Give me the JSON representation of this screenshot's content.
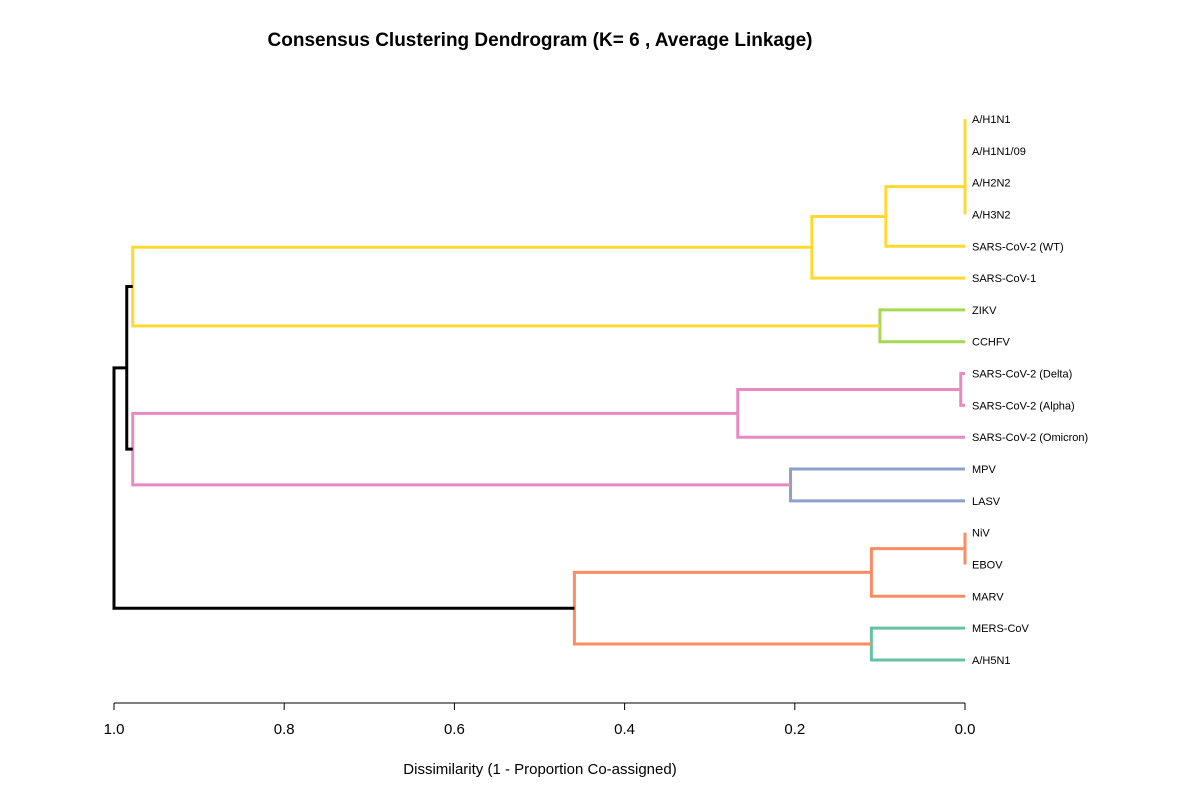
{
  "chart_data": {
    "type": "dendrogram",
    "title": "Consensus Clustering Dendrogram (K= 6 , Average Linkage)",
    "xlabel": "Dissimilarity (1 - Proportion Co-assigned)",
    "xlim": [
      1.0,
      0.0
    ],
    "ticks": [
      "1.0",
      "0.8",
      "0.6",
      "0.4",
      "0.2",
      "0.0"
    ],
    "tick_values": [
      1.0,
      0.8,
      0.6,
      0.4,
      0.2,
      0.0
    ],
    "k": 6,
    "linkage": "average",
    "leaves": [
      {
        "name": "A/H1N1",
        "cluster": 1
      },
      {
        "name": "A/H1N1/09",
        "cluster": 1
      },
      {
        "name": "A/H2N2",
        "cluster": 1
      },
      {
        "name": "A/H3N2",
        "cluster": 1
      },
      {
        "name": "SARS-CoV-2 (WT)",
        "cluster": 1
      },
      {
        "name": "SARS-CoV-1",
        "cluster": 1
      },
      {
        "name": "ZIKV",
        "cluster": 2
      },
      {
        "name": "CCHFV",
        "cluster": 2
      },
      {
        "name": "SARS-CoV-2 (Delta)",
        "cluster": 3
      },
      {
        "name": "SARS-CoV-2 (Alpha)",
        "cluster": 3
      },
      {
        "name": "SARS-CoV-2 (Omicron)",
        "cluster": 3
      },
      {
        "name": "MPV",
        "cluster": 4
      },
      {
        "name": "LASV",
        "cluster": 4
      },
      {
        "name": "NiV",
        "cluster": 5
      },
      {
        "name": "EBOV",
        "cluster": 5
      },
      {
        "name": "MARV",
        "cluster": 5
      },
      {
        "name": "MERS-CoV",
        "cluster": 6
      },
      {
        "name": "A/H5N1",
        "cluster": 6
      }
    ],
    "cluster_colors": {
      "1": "#FFD92F",
      "2": "#A6D854",
      "3": "#E78AC3",
      "4": "#8DA0CB",
      "5": "#FC8D62",
      "6": "#66C2A5",
      "root": "#000000"
    },
    "merges": [
      {
        "id": "m1",
        "left": "A/H1N1",
        "right": "A/H1N1/09",
        "height": 0.0,
        "color": "1"
      },
      {
        "id": "m2",
        "left": "m1",
        "right": "A/H2N2",
        "height": 0.0,
        "color": "1"
      },
      {
        "id": "m3",
        "left": "m2",
        "right": "A/H3N2",
        "height": 0.0,
        "color": "1"
      },
      {
        "id": "m4",
        "left": "m3",
        "right": "SARS-CoV-2 (WT)",
        "height": 0.093,
        "color": "1"
      },
      {
        "id": "m5",
        "left": "m4",
        "right": "SARS-CoV-1",
        "height": 0.18,
        "color": "1"
      },
      {
        "id": "m6",
        "left": "ZIKV",
        "right": "CCHFV",
        "height": 0.1,
        "color": "2"
      },
      {
        "id": "m7",
        "left": "m5",
        "right": "m6",
        "height": 0.978,
        "color": "1"
      },
      {
        "id": "m8",
        "left": "SARS-CoV-2 (Delta)",
        "right": "SARS-CoV-2 (Alpha)",
        "height": 0.005,
        "color": "3"
      },
      {
        "id": "m9",
        "left": "m8",
        "right": "SARS-CoV-2 (Omicron)",
        "height": 0.267,
        "color": "3"
      },
      {
        "id": "m10",
        "left": "MPV",
        "right": "LASV",
        "height": 0.205,
        "color": "4"
      },
      {
        "id": "m11",
        "left": "m9",
        "right": "m10",
        "height": 0.978,
        "color": "3"
      },
      {
        "id": "m12",
        "left": "m7",
        "right": "m11",
        "height": 0.985,
        "color": "root"
      },
      {
        "id": "m13",
        "left": "NiV",
        "right": "EBOV",
        "height": 0.0,
        "color": "5"
      },
      {
        "id": "m14",
        "left": "m13",
        "right": "MARV",
        "height": 0.11,
        "color": "5"
      },
      {
        "id": "m15",
        "left": "MERS-CoV",
        "right": "A/H5N1",
        "height": 0.11,
        "color": "6"
      },
      {
        "id": "m16",
        "left": "m14",
        "right": "m15",
        "height": 0.459,
        "color": "5"
      },
      {
        "id": "m17",
        "left": "m12",
        "right": "m16",
        "height": 1.0,
        "color": "root"
      }
    ]
  }
}
